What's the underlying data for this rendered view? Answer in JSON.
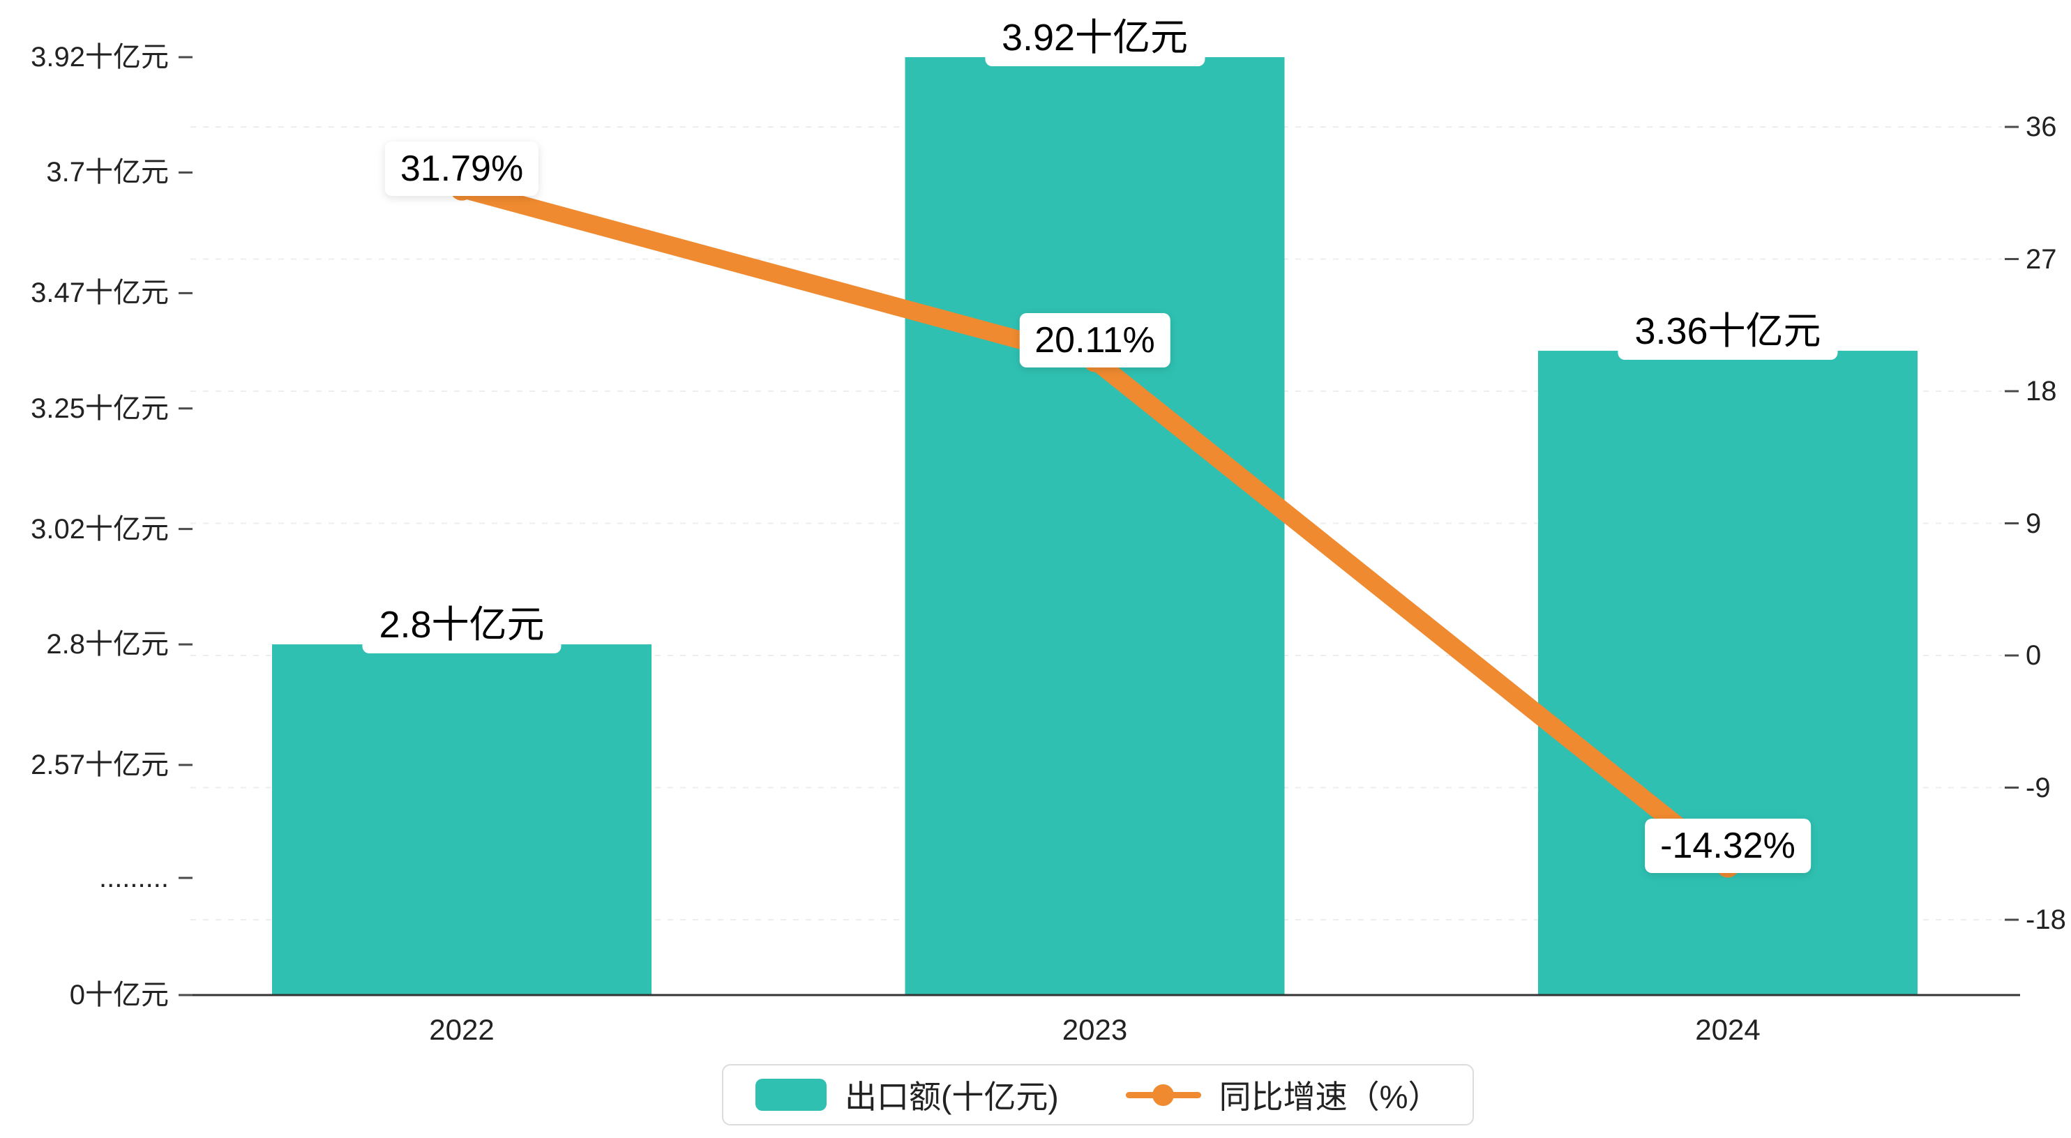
{
  "chart_data": {
    "type": "bar+line",
    "categories": [
      "2022",
      "2023",
      "2024"
    ],
    "series": [
      {
        "name": "出口额(十亿元)",
        "type": "bar",
        "axis": "left",
        "values": [
          2.8,
          3.92,
          3.36
        ],
        "labels": [
          "2.8十亿元",
          "3.92十亿元",
          "3.36十亿元"
        ]
      },
      {
        "name": "同比增速（%）",
        "type": "line",
        "axis": "right",
        "values": [
          31.79,
          20.11,
          -14.32
        ],
        "labels": [
          "31.79%",
          "20.11%",
          "-14.32%"
        ]
      }
    ],
    "left_axis": {
      "ticks": [
        {
          "label": "3.92十亿元",
          "value": 3.92
        },
        {
          "label": "3.7十亿元",
          "value": 3.7
        },
        {
          "label": "3.47十亿元",
          "value": 3.47
        },
        {
          "label": "3.25十亿元",
          "value": 3.25
        },
        {
          "label": "3.02十亿元",
          "value": 3.02
        },
        {
          "label": "2.8十亿元",
          "value": 2.8
        },
        {
          "label": "2.57十亿元",
          "value": 2.57
        },
        {
          "label": ".........",
          "value": null
        },
        {
          "label": "0十亿元",
          "value": 0
        }
      ],
      "has_break": true,
      "linear_range": [
        2.57,
        3.92
      ]
    },
    "right_axis": {
      "ticks": [
        36,
        27,
        18,
        9,
        0,
        -9,
        -18
      ],
      "min": -18,
      "max": 36
    },
    "legend": [
      {
        "label": "出口额(十亿元)",
        "marker": "bar-swatch"
      },
      {
        "label": "同比增速（%）",
        "marker": "line-dot"
      }
    ],
    "grid": {
      "horizontal_dashed_at_right_ticks": true
    },
    "title": "",
    "xlabel": "",
    "ylabel": ""
  },
  "colors": {
    "bar": "#2fc0b1",
    "line": "#ef8a30",
    "grid": "#ededed",
    "axis": "#333333",
    "tick": "#4a4a4a",
    "text": "#111111",
    "label_box": "#ffffff",
    "legend_border": "#dcdcdc"
  }
}
